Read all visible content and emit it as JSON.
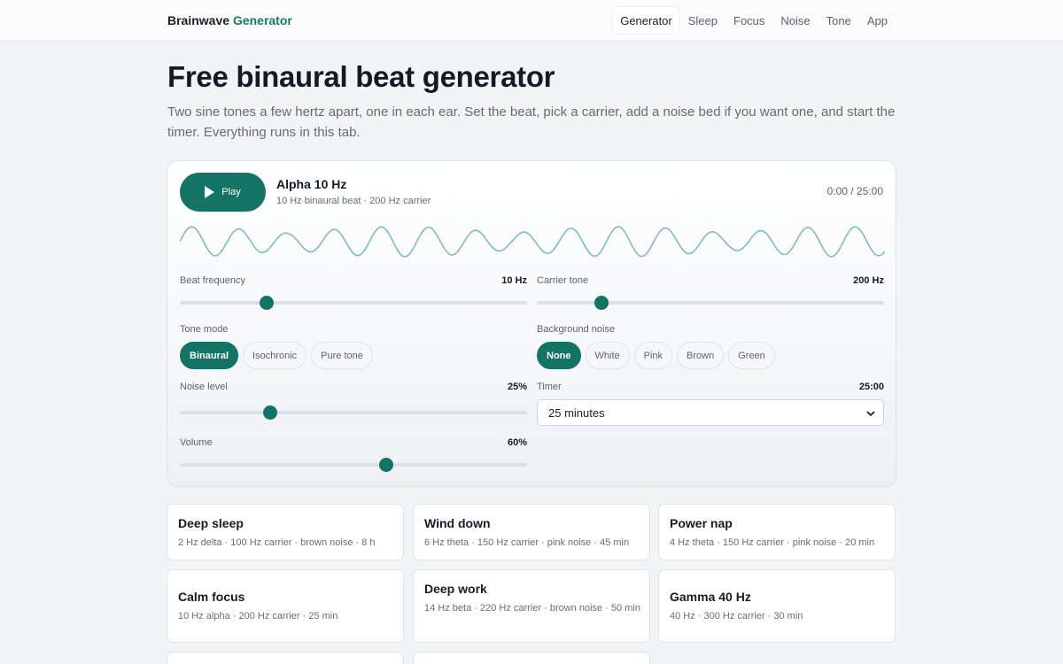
{
  "header": {
    "brand_main": "Brainwave",
    "brand_accent": "Generator",
    "nav": [
      "Generator",
      "Sleep",
      "Focus",
      "Noise",
      "Tone",
      "App"
    ],
    "active_nav": "Generator"
  },
  "hero": {
    "title": "Free binaural beat generator",
    "intro": "Two sine tones a few hertz apart, one in each ear. Set the beat, pick a carrier, add a noise bed if you want one, and start the timer. Everything runs in this tab."
  },
  "player": {
    "play_label": "Play",
    "play_icon": "play-icon",
    "track_title": "Alpha 10 Hz",
    "track_subtitle": "10 Hz binaural beat · 200 Hz carrier",
    "time": "0:00 / 25:00",
    "beat_frequency": {
      "label": "Beat frequency",
      "value": "10 Hz",
      "level": 0.25
    },
    "carrier_tone": {
      "label": "Carrier tone",
      "value": "200 Hz",
      "level": 0.185
    },
    "tone_mode": {
      "label": "Tone mode",
      "options": [
        "Binaural",
        "Isochronic",
        "Pure tone"
      ],
      "selected": "Binaural"
    },
    "background_noise": {
      "label": "Background noise",
      "options": [
        "None",
        "White",
        "Pink",
        "Brown",
        "Green"
      ],
      "selected": "None"
    },
    "noise_level": {
      "label": "Noise level",
      "value": "25%",
      "level": 0.26
    },
    "timer": {
      "label": "Timer",
      "value": "25:00",
      "selected_option": "25 minutes"
    },
    "volume": {
      "label": "Volume",
      "value": "60%",
      "level": 0.595
    }
  },
  "colors": {
    "accent": "#137364",
    "wave": "#7fbfb2"
  },
  "presets": [
    {
      "title": "Deep sleep",
      "desc": "2 Hz delta · 100 Hz carrier · brown noise · 8 h"
    },
    {
      "title": "Wind down",
      "desc": "6 Hz theta · 150 Hz carrier · pink noise · 45 min"
    },
    {
      "title": "Power nap",
      "desc": "4 Hz theta · 150 Hz carrier · pink noise · 20 min"
    },
    {
      "title": "Calm focus",
      "desc": "10 Hz alpha · 200 Hz carrier · 25 min"
    },
    {
      "title": "Deep work",
      "desc": "14 Hz beta · 220 Hz carrier · brown noise · 50 min"
    },
    {
      "title": "Gamma 40 Hz",
      "desc": "40 Hz · 300 Hz carrier · 30 min"
    }
  ]
}
